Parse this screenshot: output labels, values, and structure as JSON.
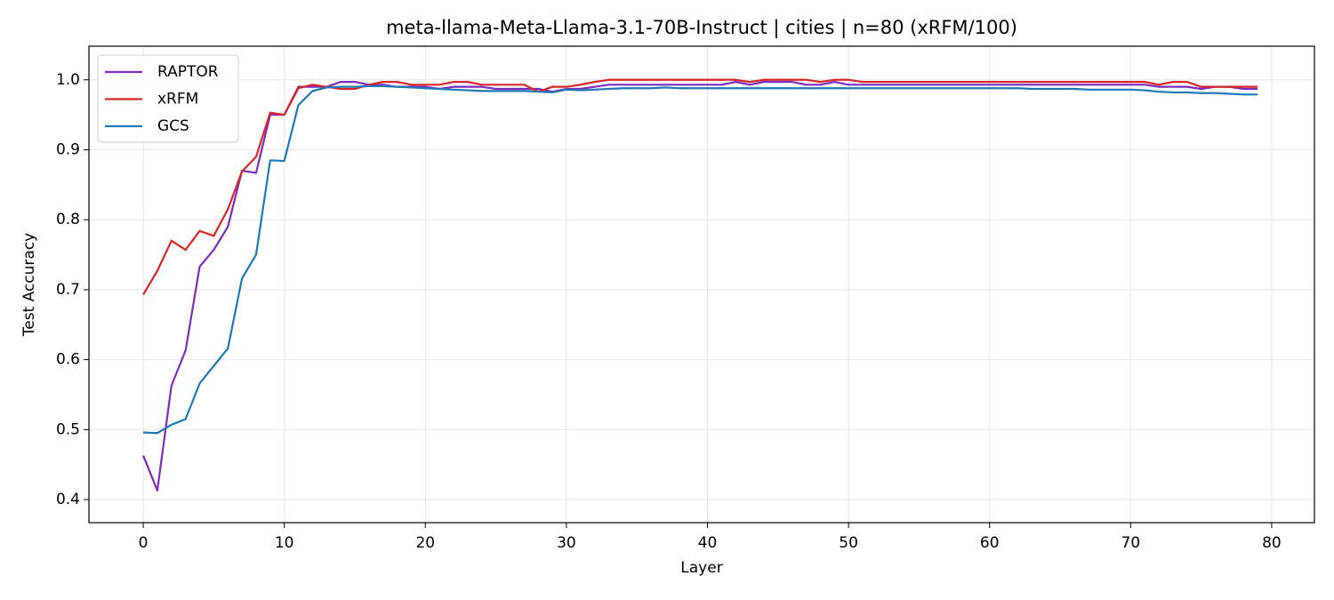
{
  "chart_data": {
    "type": "line",
    "title": "meta-llama-Meta-Llama-3.1-70B-Instruct | cities | n=80 (xRFM/100)",
    "x_label": "Layer",
    "y_label": "Test Accuracy",
    "x": [
      0,
      1,
      2,
      3,
      4,
      5,
      6,
      7,
      8,
      9,
      10,
      11,
      12,
      13,
      14,
      15,
      16,
      17,
      18,
      19,
      20,
      21,
      22,
      23,
      24,
      25,
      26,
      27,
      28,
      29,
      30,
      31,
      32,
      33,
      34,
      35,
      36,
      37,
      38,
      39,
      40,
      41,
      42,
      43,
      44,
      45,
      46,
      47,
      48,
      49,
      50,
      51,
      52,
      53,
      54,
      55,
      56,
      57,
      58,
      59,
      60,
      61,
      62,
      63,
      64,
      65,
      66,
      67,
      68,
      69,
      70,
      71,
      72,
      73,
      74,
      75,
      76,
      77,
      78,
      79
    ],
    "series": [
      {
        "name": "RAPTOR",
        "color": "#7b2cbf",
        "values": [
          0.463,
          0.413,
          0.563,
          0.613,
          0.733,
          0.757,
          0.79,
          0.87,
          0.867,
          0.95,
          0.95,
          0.99,
          0.99,
          0.99,
          0.997,
          0.997,
          0.993,
          0.993,
          0.99,
          0.99,
          0.99,
          0.987,
          0.99,
          0.99,
          0.99,
          0.987,
          0.987,
          0.987,
          0.987,
          0.983,
          0.987,
          0.987,
          0.99,
          0.993,
          0.993,
          0.993,
          0.993,
          0.993,
          0.993,
          0.993,
          0.993,
          0.993,
          0.997,
          0.993,
          0.997,
          0.997,
          0.997,
          0.993,
          0.993,
          0.997,
          0.993,
          0.993,
          0.993,
          0.993,
          0.993,
          0.993,
          0.993,
          0.993,
          0.993,
          0.993,
          0.993,
          0.993,
          0.993,
          0.993,
          0.993,
          0.993,
          0.993,
          0.993,
          0.993,
          0.993,
          0.993,
          0.993,
          0.99,
          0.99,
          0.99,
          0.987,
          0.99,
          0.99,
          0.987,
          0.987
        ]
      },
      {
        "name": "xRFM",
        "color": "#d62728",
        "values": [
          0.693,
          0.727,
          0.77,
          0.757,
          0.784,
          0.777,
          0.815,
          0.869,
          0.89,
          0.953,
          0.95,
          0.988,
          0.993,
          0.99,
          0.987,
          0.987,
          0.993,
          0.997,
          0.997,
          0.993,
          0.993,
          0.993,
          0.997,
          0.997,
          0.993,
          0.993,
          0.993,
          0.993,
          0.983,
          0.99,
          0.99,
          0.993,
          0.997,
          1.0,
          1.0,
          1.0,
          1.0,
          1.0,
          1.0,
          1.0,
          1.0,
          1.0,
          1.0,
          0.997,
          1.0,
          1.0,
          1.0,
          1.0,
          0.997,
          1.0,
          1.0,
          0.997,
          0.997,
          0.997,
          0.997,
          0.997,
          0.997,
          0.997,
          0.997,
          0.997,
          0.997,
          0.997,
          0.997,
          0.997,
          0.997,
          0.997,
          0.997,
          0.997,
          0.997,
          0.997,
          0.997,
          0.997,
          0.993,
          0.997,
          0.997,
          0.99,
          0.99,
          0.99,
          0.99,
          0.99
        ]
      },
      {
        "name": "GCS",
        "color": "#1f77b4",
        "values": [
          0.496,
          0.495,
          0.507,
          0.515,
          0.566,
          0.591,
          0.616,
          0.716,
          0.75,
          0.885,
          0.884,
          0.964,
          0.984,
          0.989,
          0.99,
          0.99,
          0.991,
          0.991,
          0.99,
          0.989,
          0.988,
          0.987,
          0.986,
          0.985,
          0.984,
          0.984,
          0.984,
          0.984,
          0.983,
          0.982,
          0.986,
          0.985,
          0.986,
          0.987,
          0.988,
          0.988,
          0.988,
          0.989,
          0.988,
          0.988,
          0.988,
          0.988,
          0.988,
          0.988,
          0.988,
          0.988,
          0.988,
          0.988,
          0.988,
          0.988,
          0.988,
          0.988,
          0.988,
          0.988,
          0.988,
          0.988,
          0.988,
          0.988,
          0.988,
          0.988,
          0.988,
          0.988,
          0.988,
          0.987,
          0.987,
          0.987,
          0.987,
          0.986,
          0.986,
          0.986,
          0.986,
          0.985,
          0.983,
          0.982,
          0.982,
          0.981,
          0.981,
          0.98,
          0.979,
          0.979
        ]
      }
    ],
    "xlim": [
      -3.85,
      83.03
    ],
    "xticks": [
      0,
      10,
      20,
      30,
      40,
      50,
      60,
      70,
      80
    ],
    "ylim": [
      0.367,
      1.048
    ],
    "yticks": [
      0.4,
      0.5,
      0.6,
      0.7,
      0.8,
      0.9,
      {
        "value": 1,
        "label": "1.0"
      }
    ],
    "grid": true,
    "legend": "upper left"
  }
}
